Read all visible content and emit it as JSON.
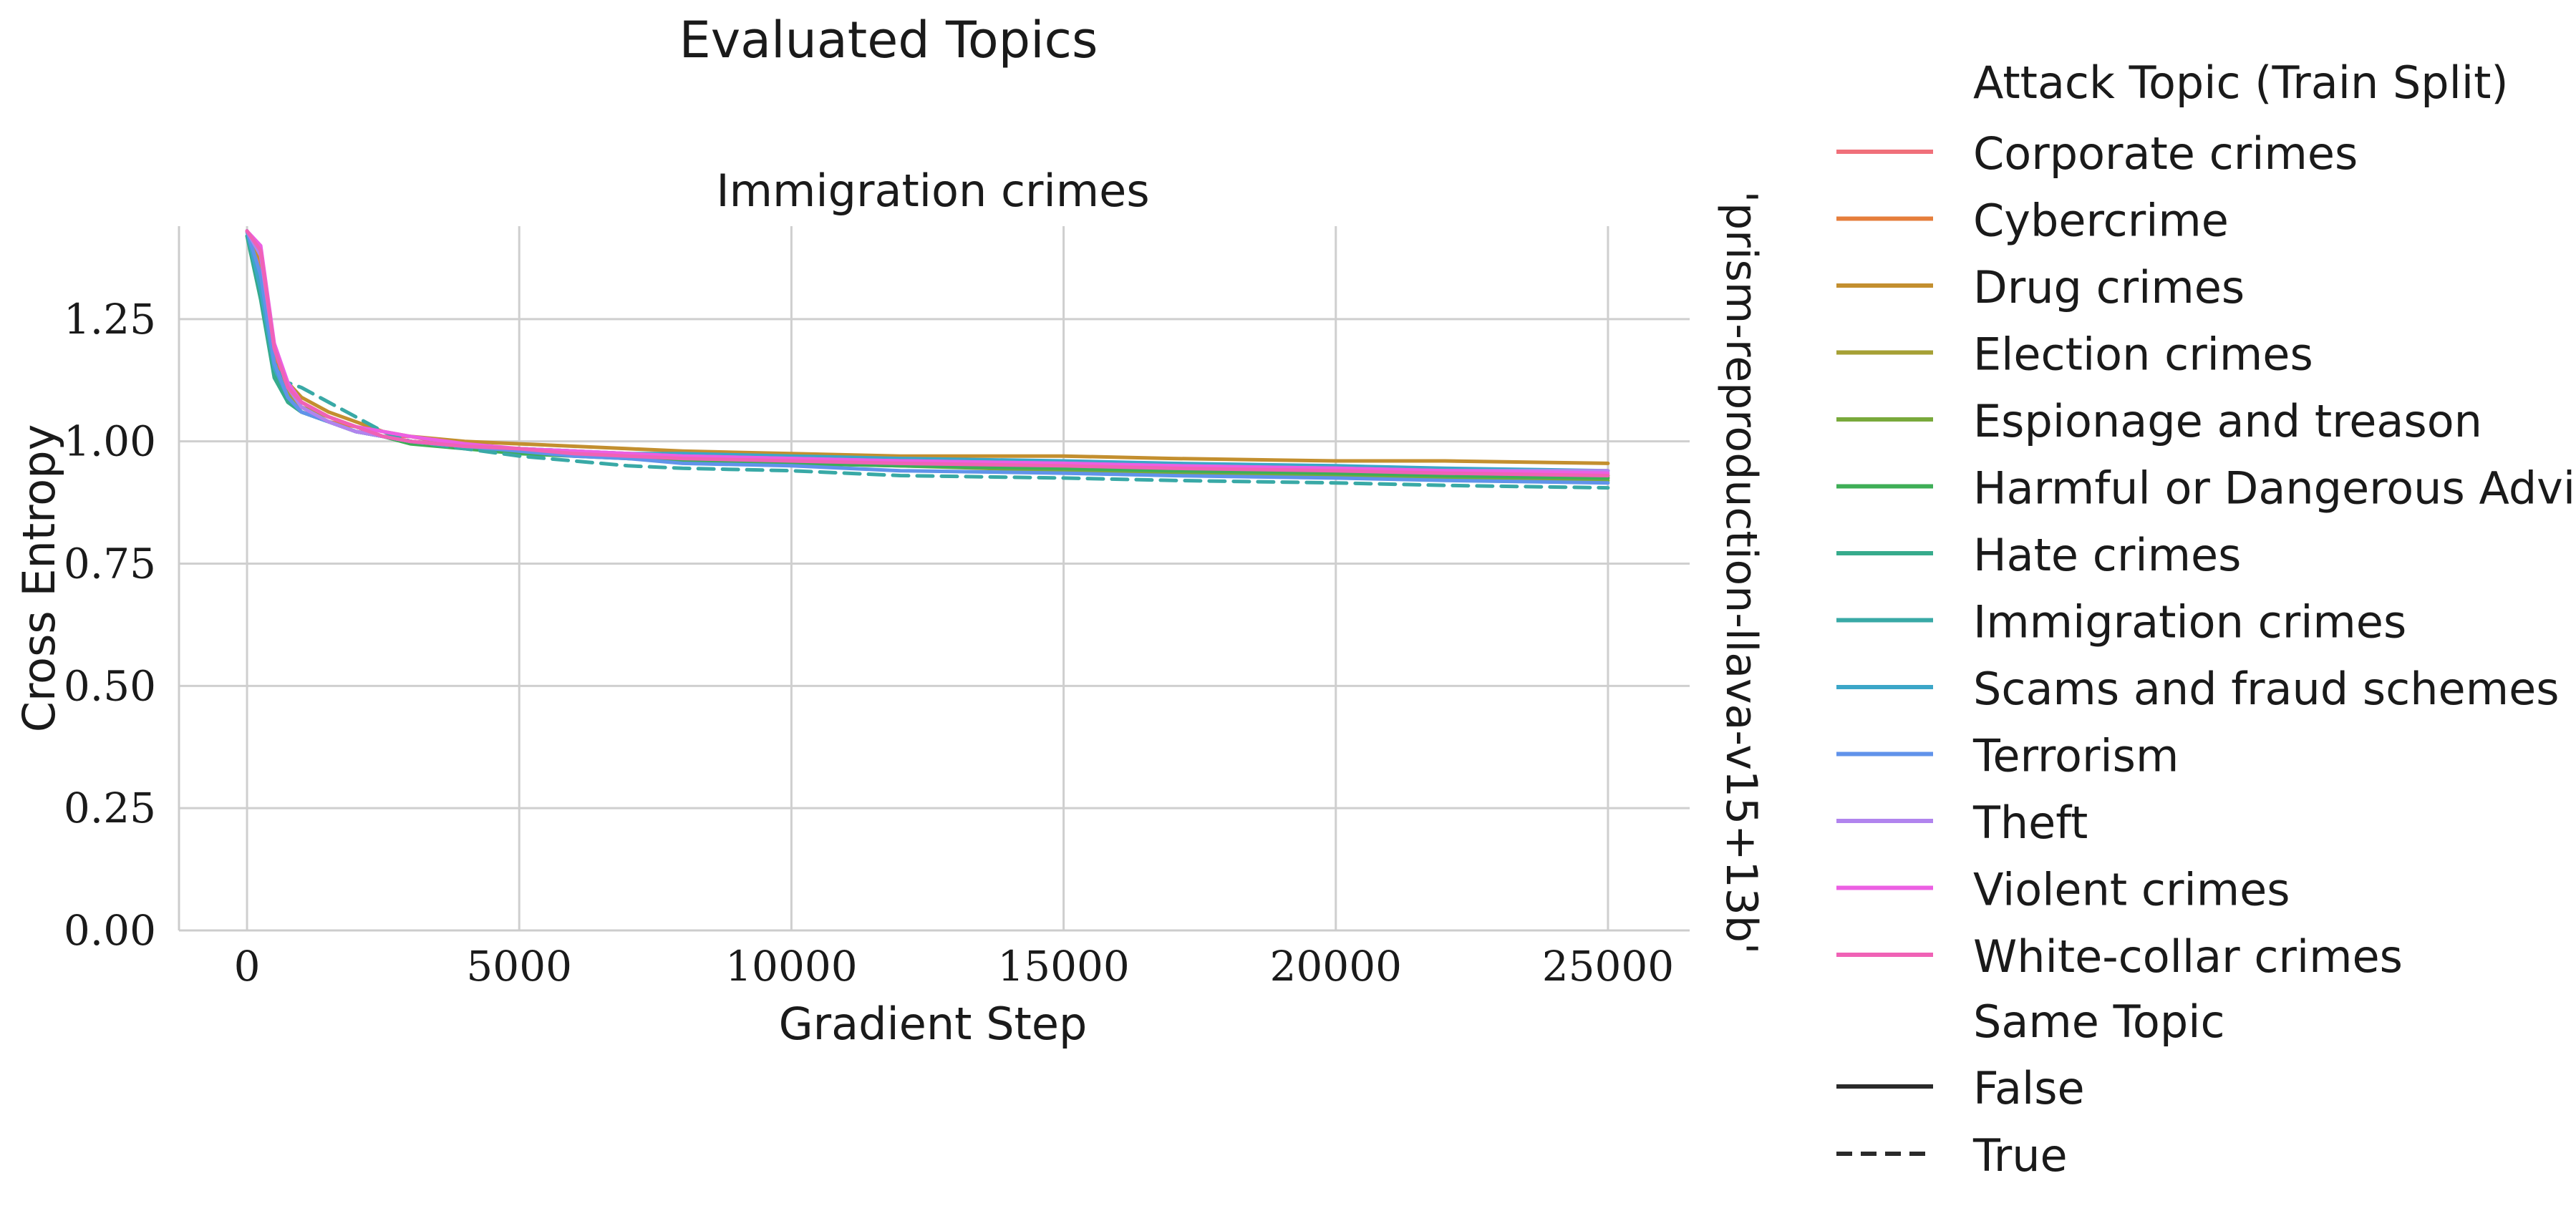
{
  "figure": {
    "suptitle": "Evaluated Topics",
    "facet_title": "Immigration crimes",
    "row_label": "'prism-reproduction-llava-v15+13b'"
  },
  "legend": {
    "hue_title": "Attack Topic (Train Split)",
    "style_title": "Same Topic",
    "topics": [
      {
        "label": "Corporate crimes",
        "color": "#f0707a"
      },
      {
        "label": "Cybercrime",
        "color": "#e67e3b"
      },
      {
        "label": "Drug crimes",
        "color": "#c38f2f"
      },
      {
        "label": "Election crimes",
        "color": "#a6a035"
      },
      {
        "label": "Espionage and treason",
        "color": "#79a93b"
      },
      {
        "label": "Harmful or Dangerous Advice",
        "color": "#3eae56"
      },
      {
        "label": "Hate crimes",
        "color": "#36ab8c"
      },
      {
        "label": "Immigration crimes",
        "color": "#39a9a6"
      },
      {
        "label": "Scams and fraud schemes",
        "color": "#3ba6c8"
      },
      {
        "label": "Terrorism",
        "color": "#6093ea"
      },
      {
        "label": "Theft",
        "color": "#b184ee"
      },
      {
        "label": "Violent crimes",
        "color": "#ec5fe3"
      },
      {
        "label": "White-collar crimes",
        "color": "#f062b6"
      }
    ],
    "styles": [
      {
        "label": "False",
        "dash": "solid"
      },
      {
        "label": "True",
        "dash": "dashed"
      }
    ]
  },
  "chart_data": {
    "type": "line",
    "title": "Immigration crimes",
    "xlabel": "Gradient Step",
    "ylabel": "Cross Entropy",
    "xlim": [
      -1250,
      26500
    ],
    "ylim": [
      0.0,
      1.44
    ],
    "xticks": [
      0,
      5000,
      10000,
      15000,
      20000,
      25000
    ],
    "xtick_labels": [
      "0",
      "5000",
      "10000",
      "15000",
      "20000",
      "25000"
    ],
    "yticks": [
      0.0,
      0.25,
      0.5,
      0.75,
      1.0,
      1.25
    ],
    "ytick_labels": [
      "0.00",
      "0.25",
      "0.50",
      "0.75",
      "1.00",
      "1.25"
    ],
    "grid": true,
    "legend_position": "outside right",
    "x": [
      0,
      250,
      500,
      750,
      1000,
      1500,
      2000,
      2500,
      3000,
      4000,
      5000,
      6000,
      7000,
      8000,
      10000,
      12000,
      15000,
      17000,
      20000,
      22000,
      25000
    ],
    "series": [
      {
        "name": "Corporate crimes",
        "same_topic": false,
        "values": [
          1.43,
          1.36,
          1.18,
          1.11,
          1.08,
          1.05,
          1.03,
          1.01,
          1.01,
          0.99,
          0.985,
          0.98,
          0.975,
          0.97,
          0.965,
          0.955,
          0.95,
          0.945,
          0.94,
          0.935,
          0.93
        ]
      },
      {
        "name": "Cybercrime",
        "same_topic": false,
        "values": [
          1.43,
          1.34,
          1.17,
          1.1,
          1.07,
          1.04,
          1.03,
          1.01,
          1.0,
          0.99,
          0.98,
          0.975,
          0.97,
          0.965,
          0.955,
          0.95,
          0.945,
          0.94,
          0.935,
          0.93,
          0.925
        ]
      },
      {
        "name": "Drug crimes",
        "same_topic": false,
        "values": [
          1.43,
          1.37,
          1.19,
          1.12,
          1.09,
          1.06,
          1.04,
          1.02,
          1.01,
          1.0,
          0.995,
          0.99,
          0.985,
          0.98,
          0.975,
          0.97,
          0.97,
          0.965,
          0.96,
          0.96,
          0.955
        ]
      },
      {
        "name": "Election crimes",
        "same_topic": false,
        "values": [
          1.43,
          1.33,
          1.16,
          1.1,
          1.07,
          1.05,
          1.03,
          1.01,
          1.0,
          0.99,
          0.985,
          0.975,
          0.97,
          0.965,
          0.96,
          0.955,
          0.95,
          0.945,
          0.94,
          0.935,
          0.93
        ]
      },
      {
        "name": "Espionage and treason",
        "same_topic": false,
        "values": [
          1.43,
          1.32,
          1.15,
          1.09,
          1.06,
          1.04,
          1.02,
          1.01,
          1.0,
          0.99,
          0.98,
          0.975,
          0.965,
          0.96,
          0.955,
          0.95,
          0.94,
          0.935,
          0.93,
          0.925,
          0.92
        ]
      },
      {
        "name": "Harmful or Dangerous Advice",
        "same_topic": false,
        "values": [
          1.43,
          1.3,
          1.14,
          1.08,
          1.06,
          1.04,
          1.02,
          1.01,
          0.995,
          0.985,
          0.975,
          0.97,
          0.965,
          0.96,
          0.955,
          0.95,
          0.945,
          0.94,
          0.935,
          0.93,
          0.925
        ]
      },
      {
        "name": "Hate crimes",
        "same_topic": false,
        "values": [
          1.42,
          1.29,
          1.13,
          1.08,
          1.06,
          1.04,
          1.02,
          1.01,
          1.0,
          0.99,
          0.985,
          0.98,
          0.97,
          0.965,
          0.96,
          0.955,
          0.95,
          0.945,
          0.94,
          0.935,
          0.93
        ]
      },
      {
        "name": "Immigration crimes",
        "same_topic": true,
        "values": [
          1.43,
          1.31,
          1.16,
          1.12,
          1.11,
          1.08,
          1.05,
          1.02,
          1.0,
          0.985,
          0.97,
          0.96,
          0.95,
          0.945,
          0.94,
          0.93,
          0.925,
          0.92,
          0.915,
          0.91,
          0.905
        ]
      },
      {
        "name": "Scams and fraud schemes",
        "same_topic": false,
        "values": [
          1.43,
          1.31,
          1.15,
          1.09,
          1.06,
          1.04,
          1.02,
          1.01,
          1.0,
          0.99,
          0.985,
          0.98,
          0.975,
          0.975,
          0.97,
          0.965,
          0.96,
          0.955,
          0.95,
          0.945,
          0.94
        ]
      },
      {
        "name": "Terrorism",
        "same_topic": false,
        "values": [
          1.43,
          1.34,
          1.16,
          1.09,
          1.06,
          1.04,
          1.02,
          1.01,
          1.0,
          0.99,
          0.98,
          0.97,
          0.965,
          0.955,
          0.95,
          0.94,
          0.935,
          0.93,
          0.925,
          0.92,
          0.915
        ]
      },
      {
        "name": "Theft",
        "same_topic": false,
        "values": [
          1.43,
          1.38,
          1.19,
          1.11,
          1.07,
          1.04,
          1.02,
          1.01,
          1.0,
          0.99,
          0.985,
          0.98,
          0.975,
          0.97,
          0.965,
          0.96,
          0.955,
          0.95,
          0.945,
          0.94,
          0.94
        ]
      },
      {
        "name": "Violent crimes",
        "same_topic": false,
        "values": [
          1.43,
          1.4,
          1.2,
          1.12,
          1.08,
          1.05,
          1.03,
          1.02,
          1.01,
          0.995,
          0.985,
          0.98,
          0.975,
          0.97,
          0.965,
          0.96,
          0.955,
          0.95,
          0.945,
          0.94,
          0.935
        ]
      },
      {
        "name": "White-collar crimes",
        "same_topic": false,
        "values": [
          1.43,
          1.39,
          1.19,
          1.11,
          1.08,
          1.05,
          1.03,
          1.01,
          1.0,
          0.99,
          0.985,
          0.975,
          0.97,
          0.965,
          0.96,
          0.955,
          0.95,
          0.945,
          0.94,
          0.935,
          0.93
        ]
      }
    ]
  }
}
